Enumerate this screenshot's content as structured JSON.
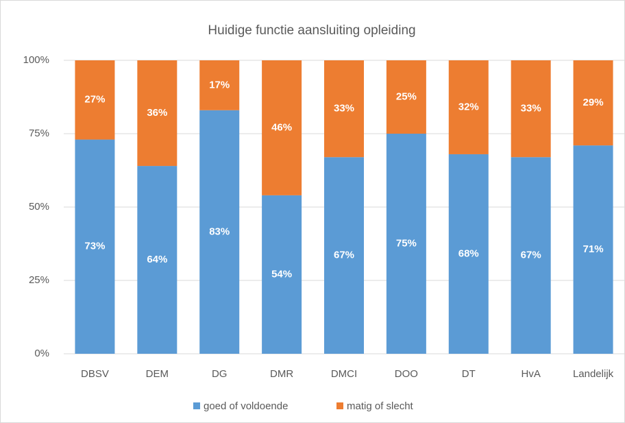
{
  "chart_data": {
    "type": "stacked_bar",
    "title": "Huidige functie aansluiting opleiding",
    "categories": [
      "DBSV",
      "DEM",
      "DG",
      "DMR",
      "DMCI",
      "DOO",
      "DT",
      "HvA",
      "Landelijk"
    ],
    "series": [
      {
        "name": "goed of voldoende",
        "color": "#5b9bd5",
        "values": [
          73,
          64,
          83,
          54,
          67,
          75,
          68,
          67,
          71
        ],
        "value_labels": [
          "73%",
          "64%",
          "83%",
          "54%",
          "67%",
          "75%",
          "68%",
          "67%",
          "71%"
        ]
      },
      {
        "name": "matig of slecht",
        "color": "#ed7d31",
        "values": [
          27,
          36,
          17,
          46,
          33,
          25,
          32,
          33,
          29
        ],
        "value_labels": [
          "27%",
          "36%",
          "17%",
          "46%",
          "33%",
          "25%",
          "32%",
          "33%",
          "29%"
        ]
      }
    ],
    "ylim": [
      0,
      100
    ],
    "yticks": [
      {
        "value": 0,
        "label": "0%"
      },
      {
        "value": 25,
        "label": "25%"
      },
      {
        "value": 50,
        "label": "50%"
      },
      {
        "value": 75,
        "label": "75%"
      },
      {
        "value": 100,
        "label": "100%"
      }
    ],
    "grid": true,
    "legend": "bottom"
  }
}
